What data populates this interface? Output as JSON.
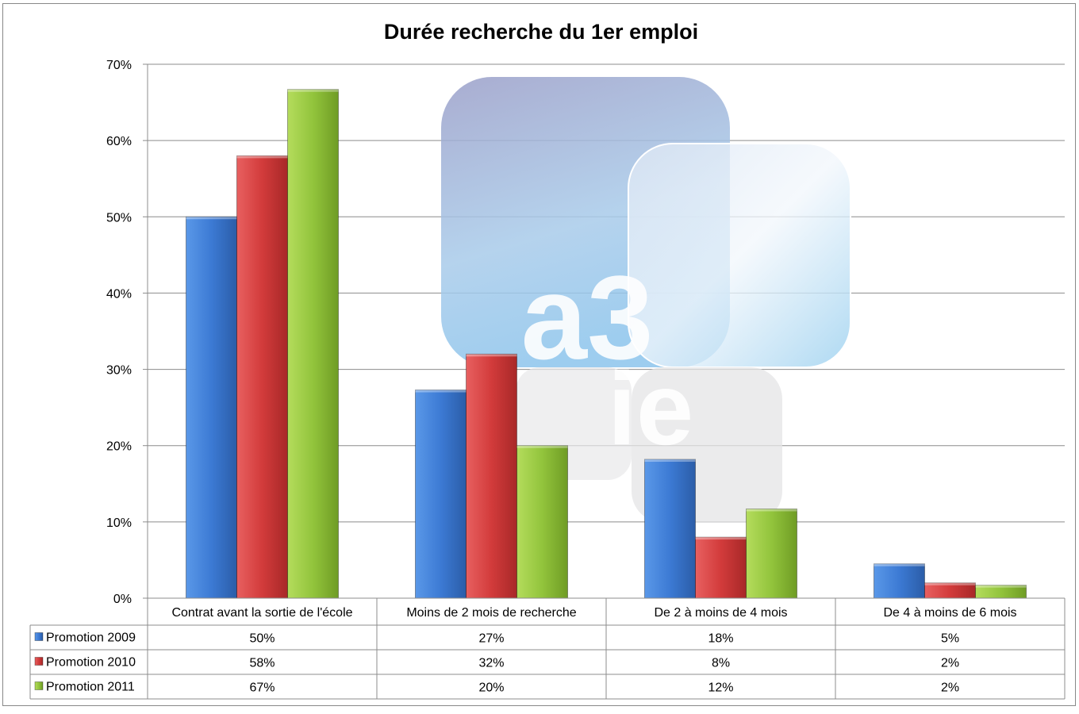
{
  "chart_data": {
    "type": "bar",
    "title": "Durée recherche du 1er emploi",
    "categories": [
      "Contrat avant la sortie de l'école",
      "Moins de 2 mois de recherche",
      "De 2 à moins de 4 mois",
      "De 4 à moins de 6 mois"
    ],
    "series": [
      {
        "name": "Promotion 2009",
        "color": "#3c7ad4",
        "values": [
          50,
          27.3,
          18.2,
          4.5
        ],
        "labels": [
          "50%",
          "27%",
          "18%",
          "5%"
        ]
      },
      {
        "name": "Promotion 2010",
        "color": "#d23b3b",
        "values": [
          58,
          32,
          8,
          2
        ],
        "labels": [
          "58%",
          "32%",
          "8%",
          "2%"
        ]
      },
      {
        "name": "Promotion 2011",
        "color": "#92c43c",
        "values": [
          66.7,
          20,
          11.7,
          1.7
        ],
        "labels": [
          "67%",
          "20%",
          "12%",
          "2%"
        ]
      }
    ],
    "ylim": [
      0,
      70
    ],
    "yticks": [
      0,
      10,
      20,
      30,
      40,
      50,
      60,
      70
    ],
    "ytick_labels": [
      "0%",
      "10%",
      "20%",
      "30%",
      "40%",
      "50%",
      "60%",
      "70%"
    ],
    "grid": true,
    "legend": "data-table",
    "watermark": {
      "logo_text_top": "a3",
      "logo_text_bottom": "ie"
    }
  }
}
